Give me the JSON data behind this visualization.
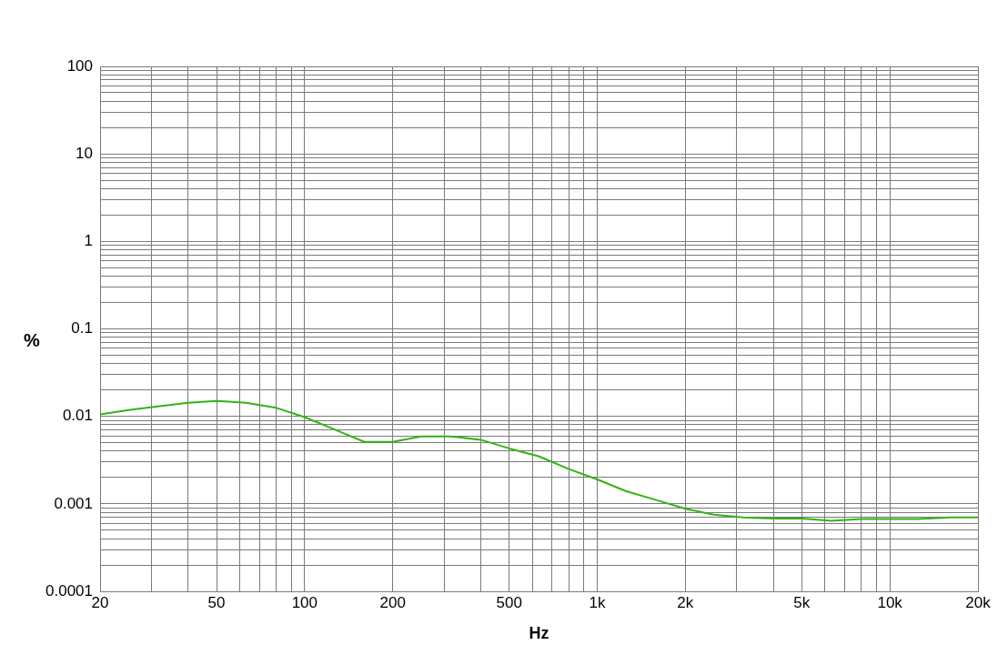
{
  "chart_data": {
    "type": "line",
    "xlabel": "Hz",
    "ylabel": "%",
    "log": "xy",
    "grid": true,
    "legend": false,
    "marker": "none",
    "line_style": "solid",
    "x": [
      20,
      25,
      31.5,
      40,
      50,
      63,
      80,
      100,
      125,
      160,
      200,
      250,
      315,
      400,
      500,
      630,
      800,
      1000,
      1250,
      1600,
      2000,
      2500,
      3150,
      4000,
      5000,
      6300,
      8000,
      10000,
      12500,
      16000,
      20000
    ],
    "series": [
      {
        "color": "#33b314",
        "values": [
          0.0105,
          0.0118,
          0.013,
          0.0143,
          0.015,
          0.0143,
          0.0125,
          0.0098,
          0.0072,
          0.0051,
          0.0051,
          0.0059,
          0.0059,
          0.0054,
          0.0043,
          0.0035,
          0.0025,
          0.0019,
          0.0014,
          0.0011,
          0.00088,
          0.00075,
          0.0007,
          0.00068,
          0.00068,
          0.00064,
          0.00067,
          0.00067,
          0.00067,
          0.0007,
          0.0007
        ]
      }
    ],
    "xlim": [
      20,
      20000
    ],
    "xticks": [
      {
        "value": 20,
        "label": "20"
      },
      {
        "value": 30,
        "label": null
      },
      {
        "value": 40,
        "label": null
      },
      {
        "value": 50,
        "label": "50"
      },
      {
        "value": 60,
        "label": null
      },
      {
        "value": 70,
        "label": null
      },
      {
        "value": 80,
        "label": null
      },
      {
        "value": 90,
        "label": null
      },
      {
        "value": 100,
        "label": "100"
      },
      {
        "value": 200,
        "label": "200"
      },
      {
        "value": 300,
        "label": null
      },
      {
        "value": 400,
        "label": null
      },
      {
        "value": 500,
        "label": "500"
      },
      {
        "value": 600,
        "label": null
      },
      {
        "value": 700,
        "label": null
      },
      {
        "value": 800,
        "label": null
      },
      {
        "value": 900,
        "label": null
      },
      {
        "value": 1000,
        "label": "1k"
      },
      {
        "value": 2000,
        "label": "2k"
      },
      {
        "value": 3000,
        "label": null
      },
      {
        "value": 4000,
        "label": null
      },
      {
        "value": 5000,
        "label": "5k"
      },
      {
        "value": 6000,
        "label": null
      },
      {
        "value": 7000,
        "label": null
      },
      {
        "value": 8000,
        "label": null
      },
      {
        "value": 9000,
        "label": null
      },
      {
        "value": 10000,
        "label": "10k"
      },
      {
        "value": 20000,
        "label": "20k"
      }
    ],
    "ylim": [
      0.0001,
      100
    ],
    "yticks": [
      0.0001,
      {
        "value": 0.0002,
        "label": null
      },
      {
        "value": 0.0003,
        "label": null
      },
      {
        "value": 0.0004,
        "label": null
      },
      {
        "value": 0.0005,
        "label": null
      },
      {
        "value": 0.0006,
        "label": null
      },
      {
        "value": 0.0007,
        "label": null
      },
      {
        "value": 0.0008,
        "label": null
      },
      {
        "value": 0.0009,
        "label": null
      },
      0.001,
      {
        "value": 0.002,
        "label": null
      },
      {
        "value": 0.003,
        "label": null
      },
      {
        "value": 0.004,
        "label": null
      },
      {
        "value": 0.005,
        "label": null
      },
      {
        "value": 0.006,
        "label": null
      },
      {
        "value": 0.007,
        "label": null
      },
      {
        "value": 0.008,
        "label": null
      },
      {
        "value": 0.009,
        "label": null
      },
      0.01,
      {
        "value": 0.02,
        "label": null
      },
      {
        "value": 0.03,
        "label": null
      },
      {
        "value": 0.04,
        "label": null
      },
      {
        "value": 0.05,
        "label": null
      },
      {
        "value": 0.06,
        "label": null
      },
      {
        "value": 0.07,
        "label": null
      },
      {
        "value": 0.08,
        "label": null
      },
      {
        "value": 0.09,
        "label": null
      },
      0.1,
      {
        "value": 0.2,
        "label": null
      },
      {
        "value": 0.3,
        "label": null
      },
      {
        "value": 0.4,
        "label": null
      },
      {
        "value": 0.5,
        "label": null
      },
      {
        "value": 0.6,
        "label": null
      },
      {
        "value": 0.7,
        "label": null
      },
      {
        "value": 0.8,
        "label": null
      },
      {
        "value": 0.9,
        "label": null
      },
      1,
      {
        "value": 2,
        "label": null
      },
      {
        "value": 3,
        "label": null
      },
      {
        "value": 4,
        "label": null
      },
      {
        "value": 5,
        "label": null
      },
      {
        "value": 6,
        "label": null
      },
      {
        "value": 7,
        "label": null
      },
      {
        "value": 8,
        "label": null
      },
      {
        "value": 9,
        "label": null
      },
      10,
      {
        "value": 20,
        "label": null
      },
      {
        "value": 30,
        "label": null
      },
      {
        "value": 40,
        "label": null
      },
      {
        "value": 50,
        "label": null
      },
      {
        "value": 60,
        "label": null
      },
      {
        "value": 70,
        "label": null
      },
      {
        "value": 80,
        "label": null
      },
      {
        "value": 90,
        "label": null
      },
      100
    ]
  }
}
